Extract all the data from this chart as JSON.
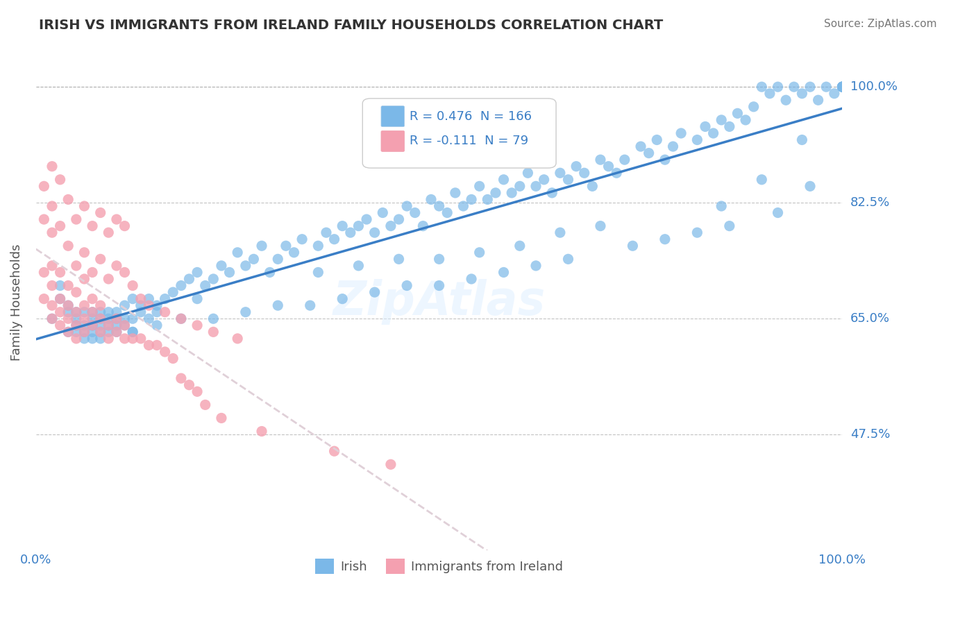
{
  "title": "IRISH VS IMMIGRANTS FROM IRELAND FAMILY HOUSEHOLDS CORRELATION CHART",
  "source": "Source: ZipAtlas.com",
  "xlabel": "",
  "ylabel": "Family Households",
  "xlim": [
    0,
    1.0
  ],
  "ylim": [
    0.3,
    1.05
  ],
  "yticks": [
    0.475,
    0.65,
    0.825,
    1.0
  ],
  "ytick_labels": [
    "47.5%",
    "65.0%",
    "82.5%",
    "100.0%"
  ],
  "xtick_labels": [
    "0.0%",
    "100.0%"
  ],
  "blue_R": 0.476,
  "blue_N": 166,
  "pink_R": -0.111,
  "pink_N": 79,
  "blue_color": "#7BB8E8",
  "pink_color": "#F4A0B0",
  "blue_line_color": "#3A7EC6",
  "pink_line_color": "#E0D0D8",
  "title_color": "#333333",
  "axis_label_color": "#3A7EC6",
  "legend_R_color": "#3A7EC6",
  "background_color": "#FFFFFF",
  "watermark": "ZipAtlas",
  "blue_scatter_x": [
    0.02,
    0.03,
    0.03,
    0.04,
    0.04,
    0.04,
    0.05,
    0.05,
    0.05,
    0.05,
    0.06,
    0.06,
    0.06,
    0.06,
    0.07,
    0.07,
    0.07,
    0.07,
    0.07,
    0.07,
    0.08,
    0.08,
    0.08,
    0.08,
    0.08,
    0.09,
    0.09,
    0.09,
    0.09,
    0.1,
    0.1,
    0.1,
    0.1,
    0.11,
    0.11,
    0.11,
    0.12,
    0.12,
    0.12,
    0.13,
    0.13,
    0.14,
    0.14,
    0.15,
    0.15,
    0.16,
    0.17,
    0.18,
    0.19,
    0.2,
    0.2,
    0.21,
    0.22,
    0.23,
    0.24,
    0.25,
    0.26,
    0.27,
    0.28,
    0.29,
    0.3,
    0.31,
    0.32,
    0.33,
    0.35,
    0.36,
    0.37,
    0.38,
    0.39,
    0.4,
    0.41,
    0.42,
    0.43,
    0.44,
    0.45,
    0.46,
    0.47,
    0.48,
    0.49,
    0.5,
    0.51,
    0.52,
    0.53,
    0.54,
    0.55,
    0.56,
    0.57,
    0.58,
    0.59,
    0.6,
    0.61,
    0.62,
    0.63,
    0.64,
    0.65,
    0.66,
    0.67,
    0.68,
    0.69,
    0.7,
    0.71,
    0.72,
    0.73,
    0.75,
    0.76,
    0.77,
    0.78,
    0.79,
    0.8,
    0.82,
    0.83,
    0.84,
    0.85,
    0.86,
    0.87,
    0.88,
    0.89,
    0.9,
    0.91,
    0.92,
    0.93,
    0.94,
    0.95,
    0.96,
    0.97,
    0.98,
    0.99,
    1.0,
    1.0,
    1.0,
    1.0,
    1.0,
    1.0,
    1.0,
    0.35,
    0.4,
    0.45,
    0.5,
    0.55,
    0.6,
    0.65,
    0.7,
    0.85,
    0.9,
    0.95,
    0.12,
    0.15,
    0.18,
    0.22,
    0.26,
    0.3,
    0.34,
    0.38,
    0.42,
    0.46,
    0.5,
    0.54,
    0.58,
    0.62,
    0.66,
    0.74,
    0.78,
    0.82,
    0.86,
    0.92,
    0.96
  ],
  "blue_scatter_y": [
    0.65,
    0.7,
    0.68,
    0.67,
    0.63,
    0.66,
    0.66,
    0.64,
    0.65,
    0.63,
    0.64,
    0.66,
    0.63,
    0.62,
    0.65,
    0.64,
    0.63,
    0.62,
    0.66,
    0.64,
    0.65,
    0.64,
    0.63,
    0.66,
    0.62,
    0.65,
    0.63,
    0.66,
    0.64,
    0.65,
    0.66,
    0.64,
    0.63,
    0.65,
    0.67,
    0.64,
    0.65,
    0.63,
    0.68,
    0.66,
    0.67,
    0.65,
    0.68,
    0.66,
    0.67,
    0.68,
    0.69,
    0.7,
    0.71,
    0.68,
    0.72,
    0.7,
    0.71,
    0.73,
    0.72,
    0.75,
    0.73,
    0.74,
    0.76,
    0.72,
    0.74,
    0.76,
    0.75,
    0.77,
    0.76,
    0.78,
    0.77,
    0.79,
    0.78,
    0.79,
    0.8,
    0.78,
    0.81,
    0.79,
    0.8,
    0.82,
    0.81,
    0.79,
    0.83,
    0.82,
    0.81,
    0.84,
    0.82,
    0.83,
    0.85,
    0.83,
    0.84,
    0.86,
    0.84,
    0.85,
    0.87,
    0.85,
    0.86,
    0.84,
    0.87,
    0.86,
    0.88,
    0.87,
    0.85,
    0.89,
    0.88,
    0.87,
    0.89,
    0.91,
    0.9,
    0.92,
    0.89,
    0.91,
    0.93,
    0.92,
    0.94,
    0.93,
    0.95,
    0.94,
    0.96,
    0.95,
    0.97,
    1.0,
    0.99,
    1.0,
    0.98,
    1.0,
    0.99,
    1.0,
    0.98,
    1.0,
    0.99,
    1.0,
    1.0,
    1.0,
    1.0,
    1.0,
    1.0,
    1.0,
    0.72,
    0.73,
    0.74,
    0.74,
    0.75,
    0.76,
    0.78,
    0.79,
    0.82,
    0.86,
    0.92,
    0.63,
    0.64,
    0.65,
    0.65,
    0.66,
    0.67,
    0.67,
    0.68,
    0.69,
    0.7,
    0.7,
    0.71,
    0.72,
    0.73,
    0.74,
    0.76,
    0.77,
    0.78,
    0.79,
    0.81,
    0.85
  ],
  "pink_scatter_x": [
    0.01,
    0.01,
    0.01,
    0.02,
    0.02,
    0.02,
    0.02,
    0.02,
    0.03,
    0.03,
    0.03,
    0.03,
    0.04,
    0.04,
    0.04,
    0.04,
    0.05,
    0.05,
    0.05,
    0.05,
    0.06,
    0.06,
    0.06,
    0.06,
    0.07,
    0.07,
    0.07,
    0.08,
    0.08,
    0.08,
    0.09,
    0.09,
    0.1,
    0.1,
    0.11,
    0.11,
    0.12,
    0.13,
    0.14,
    0.15,
    0.16,
    0.17,
    0.18,
    0.19,
    0.2,
    0.21,
    0.23,
    0.28,
    0.37,
    0.44,
    0.01,
    0.02,
    0.02,
    0.03,
    0.03,
    0.04,
    0.04,
    0.05,
    0.05,
    0.06,
    0.06,
    0.07,
    0.07,
    0.08,
    0.08,
    0.09,
    0.09,
    0.1,
    0.1,
    0.11,
    0.11,
    0.12,
    0.13,
    0.14,
    0.16,
    0.18,
    0.2,
    0.22,
    0.25
  ],
  "pink_scatter_y": [
    0.68,
    0.72,
    0.8,
    0.65,
    0.67,
    0.7,
    0.73,
    0.78,
    0.64,
    0.66,
    0.68,
    0.72,
    0.63,
    0.65,
    0.67,
    0.7,
    0.62,
    0.64,
    0.66,
    0.69,
    0.63,
    0.65,
    0.67,
    0.71,
    0.64,
    0.66,
    0.68,
    0.63,
    0.65,
    0.67,
    0.62,
    0.64,
    0.63,
    0.65,
    0.62,
    0.64,
    0.62,
    0.62,
    0.61,
    0.61,
    0.6,
    0.59,
    0.56,
    0.55,
    0.54,
    0.52,
    0.5,
    0.48,
    0.45,
    0.43,
    0.85,
    0.82,
    0.88,
    0.79,
    0.86,
    0.76,
    0.83,
    0.73,
    0.8,
    0.75,
    0.82,
    0.72,
    0.79,
    0.74,
    0.81,
    0.71,
    0.78,
    0.73,
    0.8,
    0.72,
    0.79,
    0.7,
    0.68,
    0.67,
    0.66,
    0.65,
    0.64,
    0.63,
    0.62
  ]
}
